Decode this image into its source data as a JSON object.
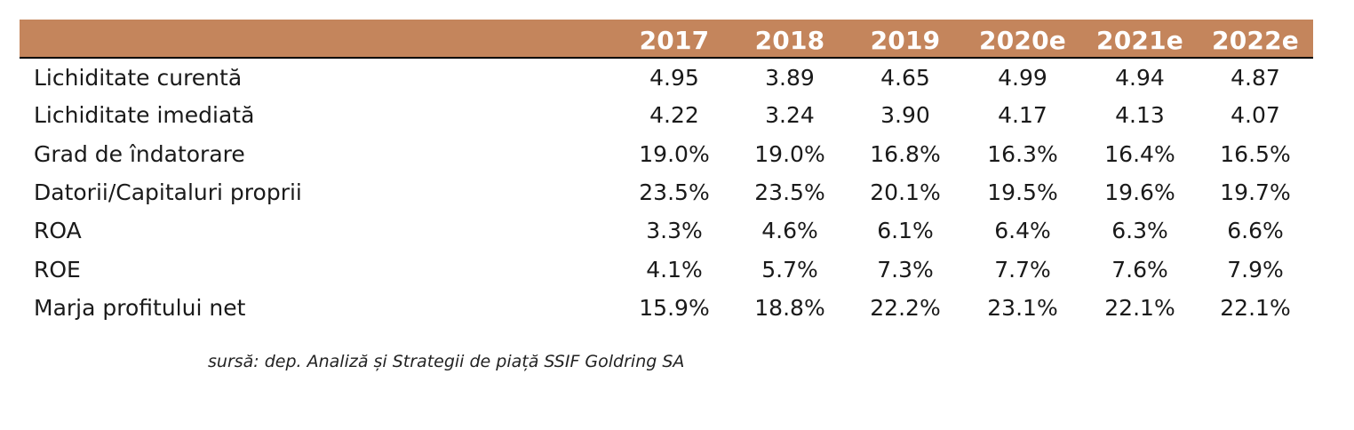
{
  "table": {
    "header": {
      "label": "",
      "years": [
        "2017",
        "2018",
        "2019",
        "2020e",
        "2021e",
        "2022e"
      ]
    },
    "rows": [
      {
        "label": "Lichiditate curentă",
        "values": [
          "4.95",
          "3.89",
          "4.65",
          "4.99",
          "4.94",
          "4.87"
        ]
      },
      {
        "label": "Lichiditate imediată",
        "values": [
          "4.22",
          "3.24",
          "3.90",
          "4.17",
          "4.13",
          "4.07"
        ]
      },
      {
        "label": "Grad de îndatorare",
        "values": [
          "19.0%",
          "19.0%",
          "16.8%",
          "16.3%",
          "16.4%",
          "16.5%"
        ]
      },
      {
        "label": "Datorii/Capitaluri proprii",
        "values": [
          "23.5%",
          "23.5%",
          "20.1%",
          "19.5%",
          "19.6%",
          "19.7%"
        ]
      },
      {
        "label": "ROA",
        "values": [
          "3.3%",
          "4.6%",
          "6.1%",
          "6.4%",
          "6.3%",
          "6.6%"
        ]
      },
      {
        "label": "ROE",
        "values": [
          "4.1%",
          "5.7%",
          "7.3%",
          "7.7%",
          "7.6%",
          "7.9%"
        ]
      },
      {
        "label": "Marja profitului net",
        "values": [
          "15.9%",
          "18.8%",
          "22.2%",
          "23.1%",
          "22.1%",
          "22.1%"
        ]
      }
    ]
  },
  "source": "sursă: dep. Analiză și Strategii de piață SSIF Goldring SA",
  "colors": {
    "header_background": "#c4855c",
    "header_text": "#ffffff",
    "body_text": "#1a1a1a"
  }
}
